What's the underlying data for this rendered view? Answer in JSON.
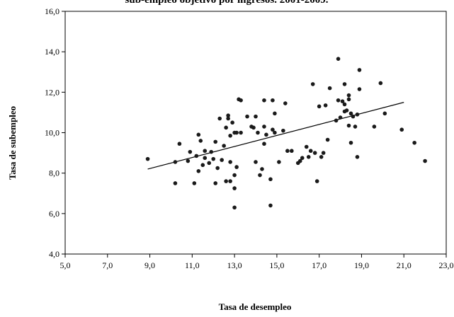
{
  "chart_data": {
    "type": "scatter",
    "title": "sub-empleo objetivo por ingresos. 2001-2009.",
    "xlabel": "Tasa de desempleo",
    "ylabel": "Tasa de subempleo",
    "xlim": [
      5.0,
      23.0
    ],
    "ylim": [
      4.0,
      16.0
    ],
    "x_ticks": [
      "5,0",
      "7,0",
      "9,0",
      "11,0",
      "13,0",
      "15,0",
      "17,0",
      "19,0",
      "21,0",
      "23,0"
    ],
    "y_ticks": [
      "4,0",
      "6,0",
      "8,0",
      "10,0",
      "12,0",
      "14,0",
      "16,0"
    ],
    "grid": false,
    "legend": "none",
    "colors": {
      "point": "#1a1a1a",
      "trendline": "#000000",
      "axis": "#000000"
    },
    "trendline": {
      "x": [
        8.9,
        21.0
      ],
      "y": [
        8.2,
        11.5
      ]
    },
    "points": [
      [
        8.9,
        8.7
      ],
      [
        10.2,
        7.5
      ],
      [
        10.2,
        8.55
      ],
      [
        10.4,
        9.45
      ],
      [
        10.8,
        8.6
      ],
      [
        10.9,
        9.05
      ],
      [
        11.1,
        7.5
      ],
      [
        11.2,
        8.85
      ],
      [
        11.3,
        8.1
      ],
      [
        11.3,
        9.9
      ],
      [
        11.4,
        9.6
      ],
      [
        11.5,
        8.4
      ],
      [
        11.6,
        8.75
      ],
      [
        11.6,
        9.1
      ],
      [
        11.8,
        8.5
      ],
      [
        11.9,
        9.05
      ],
      [
        12.0,
        8.7
      ],
      [
        12.1,
        7.5
      ],
      [
        12.1,
        9.55
      ],
      [
        12.2,
        8.25
      ],
      [
        12.3,
        10.7
      ],
      [
        12.4,
        8.65
      ],
      [
        12.5,
        9.35
      ],
      [
        12.6,
        7.6
      ],
      [
        12.6,
        10.25
      ],
      [
        12.7,
        10.7
      ],
      [
        12.7,
        10.85
      ],
      [
        12.8,
        8.55
      ],
      [
        12.8,
        7.6
      ],
      [
        12.8,
        9.85
      ],
      [
        12.9,
        10.5
      ],
      [
        13.0,
        10.0
      ],
      [
        13.0,
        7.9
      ],
      [
        13.0,
        7.25
      ],
      [
        13.0,
        6.3
      ],
      [
        13.1,
        8.3
      ],
      [
        13.1,
        10.0
      ],
      [
        13.2,
        11.65
      ],
      [
        13.3,
        11.6
      ],
      [
        13.3,
        10.0
      ],
      [
        13.6,
        10.8
      ],
      [
        13.8,
        10.3
      ],
      [
        13.9,
        10.25
      ],
      [
        14.0,
        10.8
      ],
      [
        14.0,
        8.55
      ],
      [
        14.1,
        10.0
      ],
      [
        14.2,
        7.9
      ],
      [
        14.3,
        8.2
      ],
      [
        14.4,
        10.3
      ],
      [
        14.4,
        11.6
      ],
      [
        14.4,
        9.45
      ],
      [
        14.5,
        9.9
      ],
      [
        14.7,
        6.4
      ],
      [
        14.7,
        7.7
      ],
      [
        14.8,
        10.15
      ],
      [
        14.8,
        11.6
      ],
      [
        14.9,
        10.95
      ],
      [
        14.9,
        10.0
      ],
      [
        15.1,
        8.55
      ],
      [
        15.3,
        10.1
      ],
      [
        15.4,
        11.45
      ],
      [
        15.5,
        9.1
      ],
      [
        15.7,
        9.1
      ],
      [
        16.0,
        8.5
      ],
      [
        16.1,
        8.6
      ],
      [
        16.2,
        8.75
      ],
      [
        16.4,
        9.3
      ],
      [
        16.5,
        8.8
      ],
      [
        16.6,
        9.1
      ],
      [
        16.7,
        12.4
      ],
      [
        16.8,
        9.0
      ],
      [
        16.9,
        7.6
      ],
      [
        17.0,
        11.3
      ],
      [
        17.1,
        8.8
      ],
      [
        17.2,
        9.0
      ],
      [
        17.3,
        11.35
      ],
      [
        17.4,
        9.65
      ],
      [
        17.5,
        12.2
      ],
      [
        17.8,
        10.6
      ],
      [
        17.9,
        13.65
      ],
      [
        17.9,
        11.6
      ],
      [
        18.0,
        10.75
      ],
      [
        18.1,
        11.55
      ],
      [
        18.2,
        12.4
      ],
      [
        18.2,
        11.05
      ],
      [
        18.2,
        11.4
      ],
      [
        18.3,
        11.1
      ],
      [
        18.4,
        10.35
      ],
      [
        18.4,
        11.85
      ],
      [
        18.4,
        11.65
      ],
      [
        18.5,
        9.5
      ],
      [
        18.5,
        10.95
      ],
      [
        18.6,
        10.8
      ],
      [
        18.7,
        10.3
      ],
      [
        18.8,
        8.8
      ],
      [
        18.8,
        10.9
      ],
      [
        18.9,
        13.1
      ],
      [
        18.9,
        12.15
      ],
      [
        19.6,
        10.3
      ],
      [
        19.9,
        12.45
      ],
      [
        20.1,
        10.95
      ],
      [
        20.9,
        10.15
      ],
      [
        21.5,
        9.5
      ],
      [
        22.0,
        8.6
      ]
    ]
  }
}
